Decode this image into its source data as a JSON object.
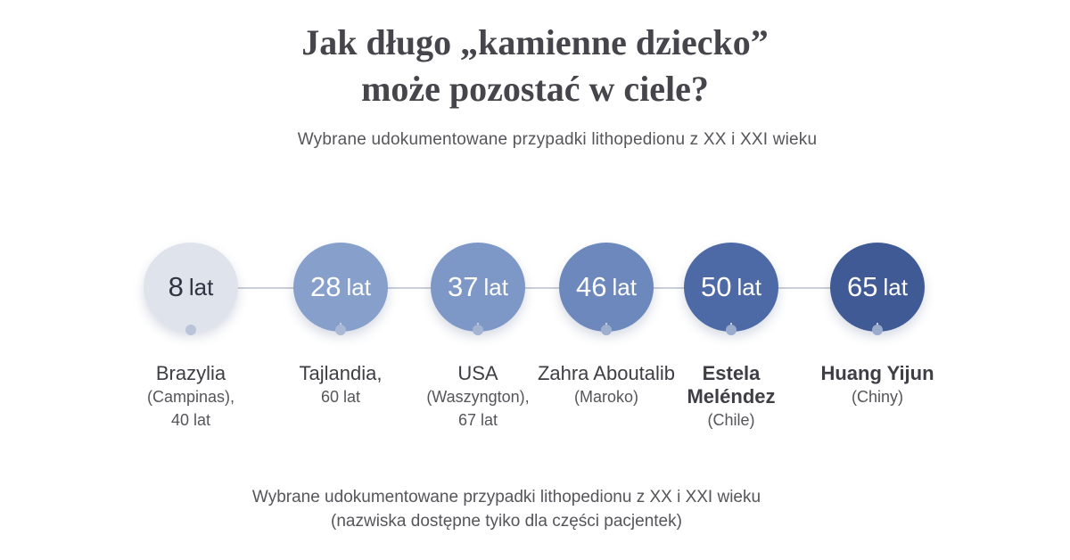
{
  "title": {
    "line1": "Jak długo „kamienne dziecko”",
    "line2": "może pozostać w ciele?"
  },
  "subtitle": "Wybrane udokumentowane przypadki lithopedionu z XX i XXI wieku",
  "colors": {
    "line": "#c9ced8",
    "circle_1": "#dfe4ec",
    "circle_2": "#87a0cb",
    "circle_3": "#7d97c6",
    "circle_4": "#6d88bc",
    "circle_5": "#4e6aa6",
    "circle_6": "#3f5a95"
  },
  "cases": [
    {
      "value": "8",
      "unit": "lat",
      "name": "Brazylia",
      "detail_1": "(Campinas),",
      "detail_2": "40 lat"
    },
    {
      "value": "28",
      "unit": "lat",
      "name": "Tajlandia,",
      "detail_1": "60 lat",
      "detail_2": ""
    },
    {
      "value": "37",
      "unit": "lat",
      "name": "USA",
      "detail_1": "(Waszyngton),",
      "detail_2": "67 lat"
    },
    {
      "value": "46",
      "unit": "lat",
      "name": "Zahra Aboutalib",
      "detail_1": "(Maroko)",
      "detail_2": ""
    },
    {
      "value": "50",
      "unit": "lat",
      "name_1": "Estela",
      "name_2": "Meléndez",
      "detail_1": "(Chile)"
    },
    {
      "value": "65",
      "unit": "lat",
      "name": "Huang Yijun",
      "detail_1": "(Chiny)",
      "detail_2": ""
    }
  ],
  "footnote": {
    "line1": "Wybrane udokumentowane przypadki lithopedionu z XX i XXI wieku",
    "line2": "(nazwiska dostępne tyiko dla części pacjentek)"
  }
}
